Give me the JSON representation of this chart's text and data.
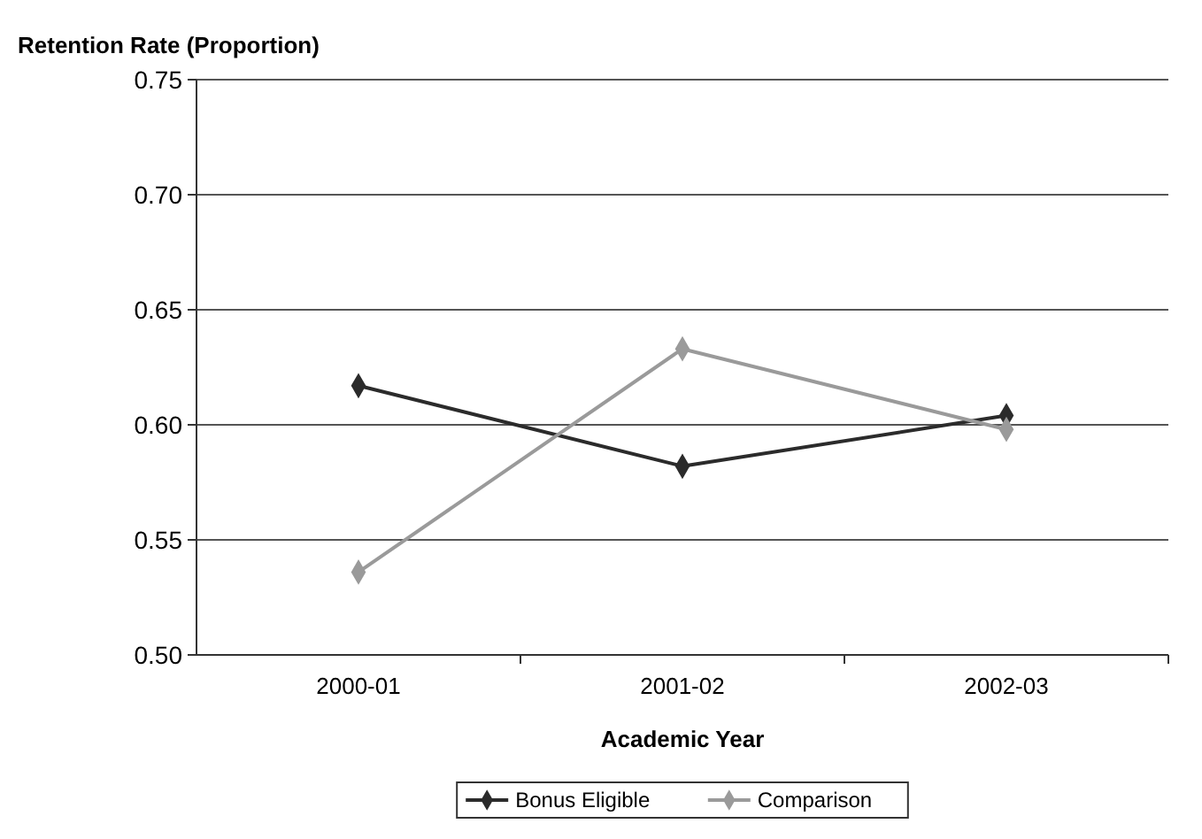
{
  "chart_data": {
    "type": "line",
    "ylabel": "Retention Rate (Proportion)",
    "xlabel": "Academic Year",
    "categories": [
      "2000-01",
      "2001-02",
      "2002-03"
    ],
    "series": [
      {
        "name": "Bonus Eligible",
        "color": "#2b2b2b",
        "values": [
          0.617,
          0.582,
          0.604
        ]
      },
      {
        "name": "Comparison",
        "color": "#9a9a9a",
        "values": [
          0.536,
          0.633,
          0.598
        ]
      }
    ],
    "ylim": [
      0.5,
      0.75
    ],
    "yticks": [
      {
        "value": 0.5,
        "label": "0.50"
      },
      {
        "value": 0.55,
        "label": "0.55"
      },
      {
        "value": 0.6,
        "label": "0.60"
      },
      {
        "value": 0.65,
        "label": "0.65"
      },
      {
        "value": 0.7,
        "label": "0.70"
      },
      {
        "value": 0.75,
        "label": "0.75"
      }
    ],
    "grid": "y",
    "legend": "bottom",
    "marker": "diamond",
    "line_style": "solid"
  }
}
